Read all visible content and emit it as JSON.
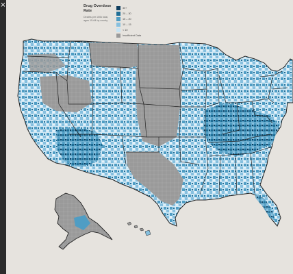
{
  "panel": {
    "close_glyph": "×"
  },
  "legend": {
    "title": "Drug Overdose Rate",
    "subtitle": "Deaths per 100k total, ages 15-64 by county",
    "items": [
      {
        "label": "30+",
        "color": "#0e3d5e"
      },
      {
        "label": "20 – 30",
        "color": "#1f6e96"
      },
      {
        "label": "15 – 20",
        "color": "#4f9dc4"
      },
      {
        "label": "10 – 15",
        "color": "#86c0df"
      },
      {
        "label": "< 10",
        "color": "#c6e3f3"
      },
      {
        "label": "Insufficient Data",
        "color": "#9a9a9a"
      }
    ]
  },
  "colors": {
    "background": "#e6e3de",
    "border": "#222222",
    "no_data": "#9a9a9a"
  }
}
